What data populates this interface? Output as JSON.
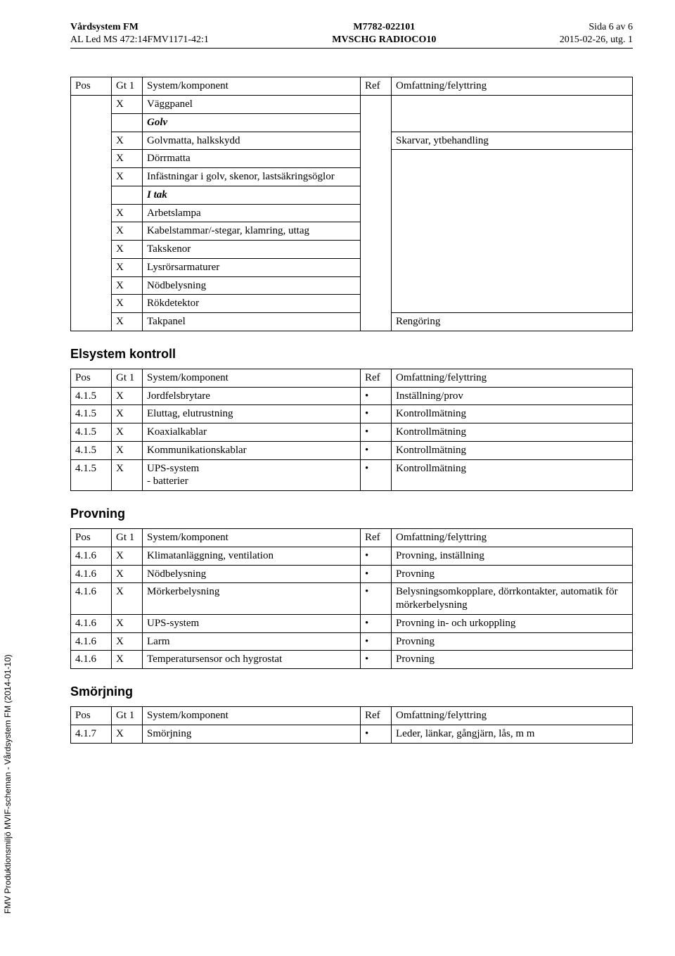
{
  "header": {
    "left": {
      "line1": "Vårdsystem FM",
      "line2": "AL Led MS 472:14FMV1171-42:1"
    },
    "center": {
      "line1": "M7782-022101",
      "line2": "MVSCHG RADIOCO10"
    },
    "right": {
      "line1": "Sida 6 av 6",
      "line2": "2015-02-26, utg. 1"
    }
  },
  "sideText": "FMV Produktionsmiljö MVIF-scheman - Vårdsystem FM (2014-01-10)",
  "tableHeaders": {
    "pos": "Pos",
    "gt": "Gt 1",
    "sys": "System/komponent",
    "ref": "Ref",
    "omf": "Omfattning/felyttring"
  },
  "sections": {
    "elsystem": "Elsystem kontroll",
    "provning": "Provning",
    "smorjning": "Smörjning"
  },
  "table1": {
    "rows": [
      {
        "gt": "X",
        "sys": "Väggpanel",
        "italic": false,
        "ref": "",
        "omf": ""
      },
      {
        "gt": "",
        "sys": "Golv",
        "italic": true,
        "ref": "",
        "omf": ""
      },
      {
        "gt": "X",
        "sys": "Golvmatta, halkskydd",
        "ref": "",
        "omf": "Skarvar, ytbehandling"
      },
      {
        "gt": "X",
        "sys": "Dörrmatta",
        "ref": "",
        "omf": ""
      },
      {
        "gt": "X",
        "sys": "Infästningar i golv, skenor, lastsäkringsöglor",
        "ref": "",
        "omf": ""
      },
      {
        "gt": "",
        "sys": "I tak",
        "italic": true,
        "ref": "",
        "omf": ""
      },
      {
        "gt": "X",
        "sys": "Arbetslampa",
        "ref": "",
        "omf": ""
      },
      {
        "gt": "X",
        "sys": "Kabelstammar/-stegar, klamring, uttag",
        "ref": "",
        "omf": ""
      },
      {
        "gt": "X",
        "sys": "Takskenor",
        "ref": "",
        "omf": ""
      },
      {
        "gt": "X",
        "sys": "Lysrörsarmaturer",
        "ref": "",
        "omf": ""
      },
      {
        "gt": "X",
        "sys": "Nödbelysning",
        "ref": "",
        "omf": ""
      },
      {
        "gt": "X",
        "sys": "Rökdetektor",
        "ref": "",
        "omf": ""
      },
      {
        "gt": "X",
        "sys": "Takpanel",
        "ref": "",
        "omf": "Rengöring"
      }
    ]
  },
  "table2": {
    "rows": [
      {
        "pos": "4.1.5",
        "gt": "X",
        "sys": "Jordfelsbrytare",
        "ref": "•",
        "omf": "Inställning/prov"
      },
      {
        "pos": "4.1.5",
        "gt": "X",
        "sys": "Eluttag, elutrustning",
        "ref": "•",
        "omf": "Kontrollmätning"
      },
      {
        "pos": "4.1.5",
        "gt": "X",
        "sys": "Koaxialkablar",
        "ref": "•",
        "omf": "Kontrollmätning"
      },
      {
        "pos": "4.1.5",
        "gt": "X",
        "sys": "Kommunikationskablar",
        "ref": "•",
        "omf": "Kontrollmätning"
      },
      {
        "pos": "4.1.5",
        "gt": "X",
        "sys": "UPS-system\n- batterier",
        "ref": "•",
        "omf": "Kontrollmätning"
      }
    ]
  },
  "table3": {
    "rows": [
      {
        "pos": "4.1.6",
        "gt": "X",
        "sys": "Klimatanläggning, ventilation",
        "ref": "•",
        "omf": "Provning, inställning"
      },
      {
        "pos": "4.1.6",
        "gt": "X",
        "sys": "Nödbelysning",
        "ref": "•",
        "omf": "Provning"
      },
      {
        "pos": "4.1.6",
        "gt": "X",
        "sys": "Mörkerbelysning",
        "ref": "•",
        "omf": "Belysningsomkopplare, dörrkontakter, automatik för mörkerbelysning"
      },
      {
        "pos": "4.1.6",
        "gt": "X",
        "sys": "UPS-system",
        "ref": "•",
        "omf": "Provning in- och urkoppling"
      },
      {
        "pos": "4.1.6",
        "gt": "X",
        "sys": "Larm",
        "ref": "•",
        "omf": "Provning"
      },
      {
        "pos": "4.1.6",
        "gt": "X",
        "sys": "Temperatursensor och hygrostat",
        "ref": "•",
        "omf": "Provning"
      }
    ]
  },
  "table4": {
    "rows": [
      {
        "pos": "4.1.7",
        "gt": "X",
        "sys": "Smörjning",
        "ref": "•",
        "omf": "Leder, länkar, gångjärn, lås, m m"
      }
    ]
  }
}
